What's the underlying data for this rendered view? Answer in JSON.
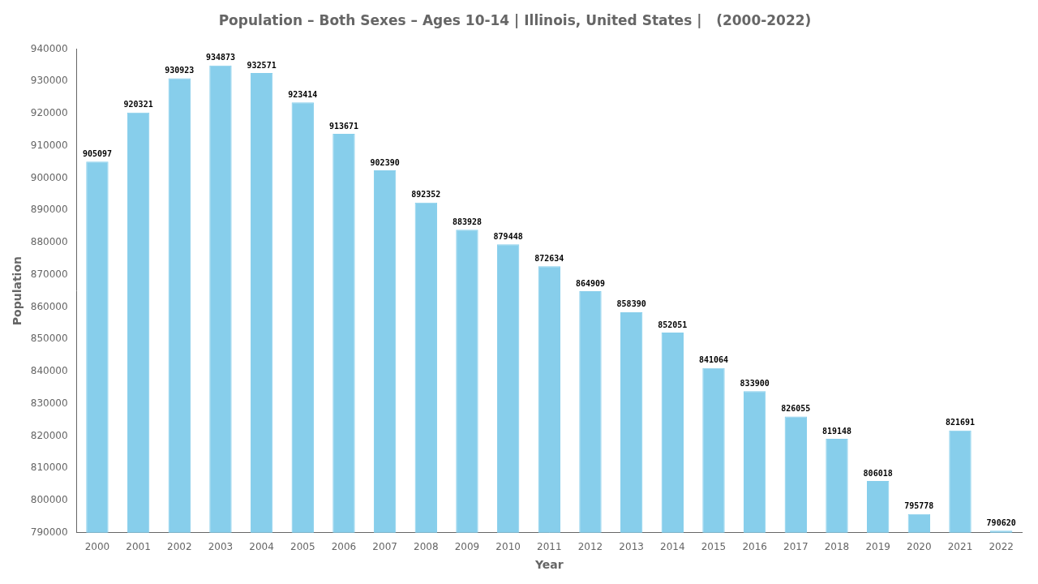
{
  "chart_data": {
    "type": "bar",
    "title": "Population – Both Sexes – Ages 10-14 | Illinois, United States |   (2000-2022)",
    "x_label": "Year",
    "y_label": "Population",
    "categories": [
      "2000",
      "2001",
      "2002",
      "2003",
      "2004",
      "2005",
      "2006",
      "2007",
      "2008",
      "2009",
      "2010",
      "2011",
      "2012",
      "2013",
      "2014",
      "2015",
      "2016",
      "2017",
      "2018",
      "2019",
      "2020",
      "2021",
      "2022"
    ],
    "values": [
      905097,
      920321,
      930923,
      934873,
      932571,
      923414,
      913671,
      902390,
      892352,
      883928,
      879448,
      872634,
      864909,
      858390,
      852051,
      841064,
      833900,
      826055,
      819148,
      806018,
      795778,
      821691,
      790620
    ],
    "color": "#87CEEB",
    "ylim": [
      790000,
      940000
    ],
    "yticks": [
      790000,
      800000,
      810000,
      820000,
      830000,
      840000,
      850000,
      860000,
      870000,
      880000,
      890000,
      900000,
      910000,
      920000,
      930000,
      940000
    ],
    "grid": false,
    "data_labels": true
  }
}
